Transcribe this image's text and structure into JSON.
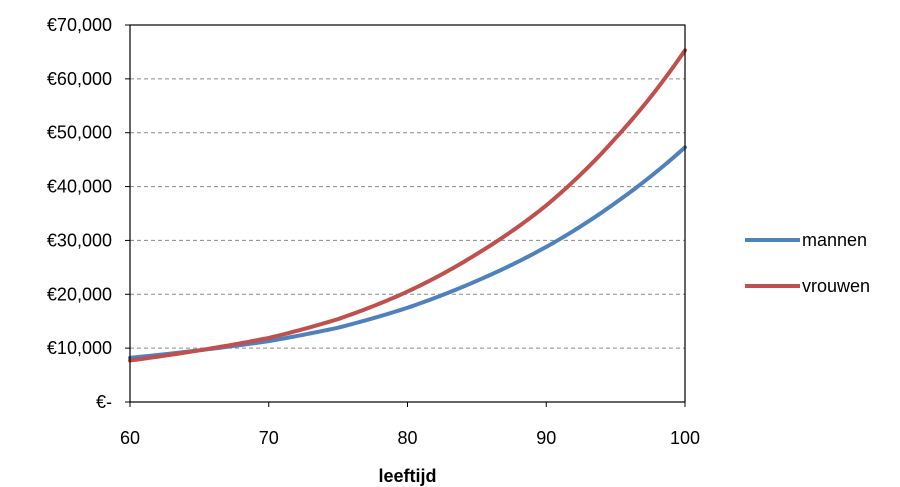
{
  "chart_data": {
    "type": "line",
    "xlabel": "leeftijd",
    "ylabel": "",
    "xlim": [
      60,
      100
    ],
    "ylim": [
      0,
      70000
    ],
    "x_ticks": [
      60,
      70,
      80,
      90,
      100
    ],
    "x_tick_labels": [
      "60",
      "70",
      "80",
      "90",
      "100"
    ],
    "y_ticks": [
      0,
      10000,
      20000,
      30000,
      40000,
      50000,
      60000,
      70000
    ],
    "y_tick_labels": [
      "€-",
      "€10,000",
      "€20,000",
      "€30,000",
      "€40,000",
      "€50,000",
      "€60,000",
      "€70,000"
    ],
    "grid": "horizontal dashed",
    "legend": "right",
    "x": [
      60,
      65,
      70,
      75,
      80,
      85,
      90,
      95,
      100
    ],
    "series": [
      {
        "name": "mannen",
        "color": "#4f81bd",
        "values": [
          8200,
          9600,
          11300,
          13800,
          17500,
          22500,
          28800,
          37000,
          47300
        ]
      },
      {
        "name": "vrouwen",
        "color": "#c0504d",
        "values": [
          7700,
          9600,
          11900,
          15400,
          20500,
          27500,
          36500,
          49000,
          65300
        ]
      }
    ]
  }
}
